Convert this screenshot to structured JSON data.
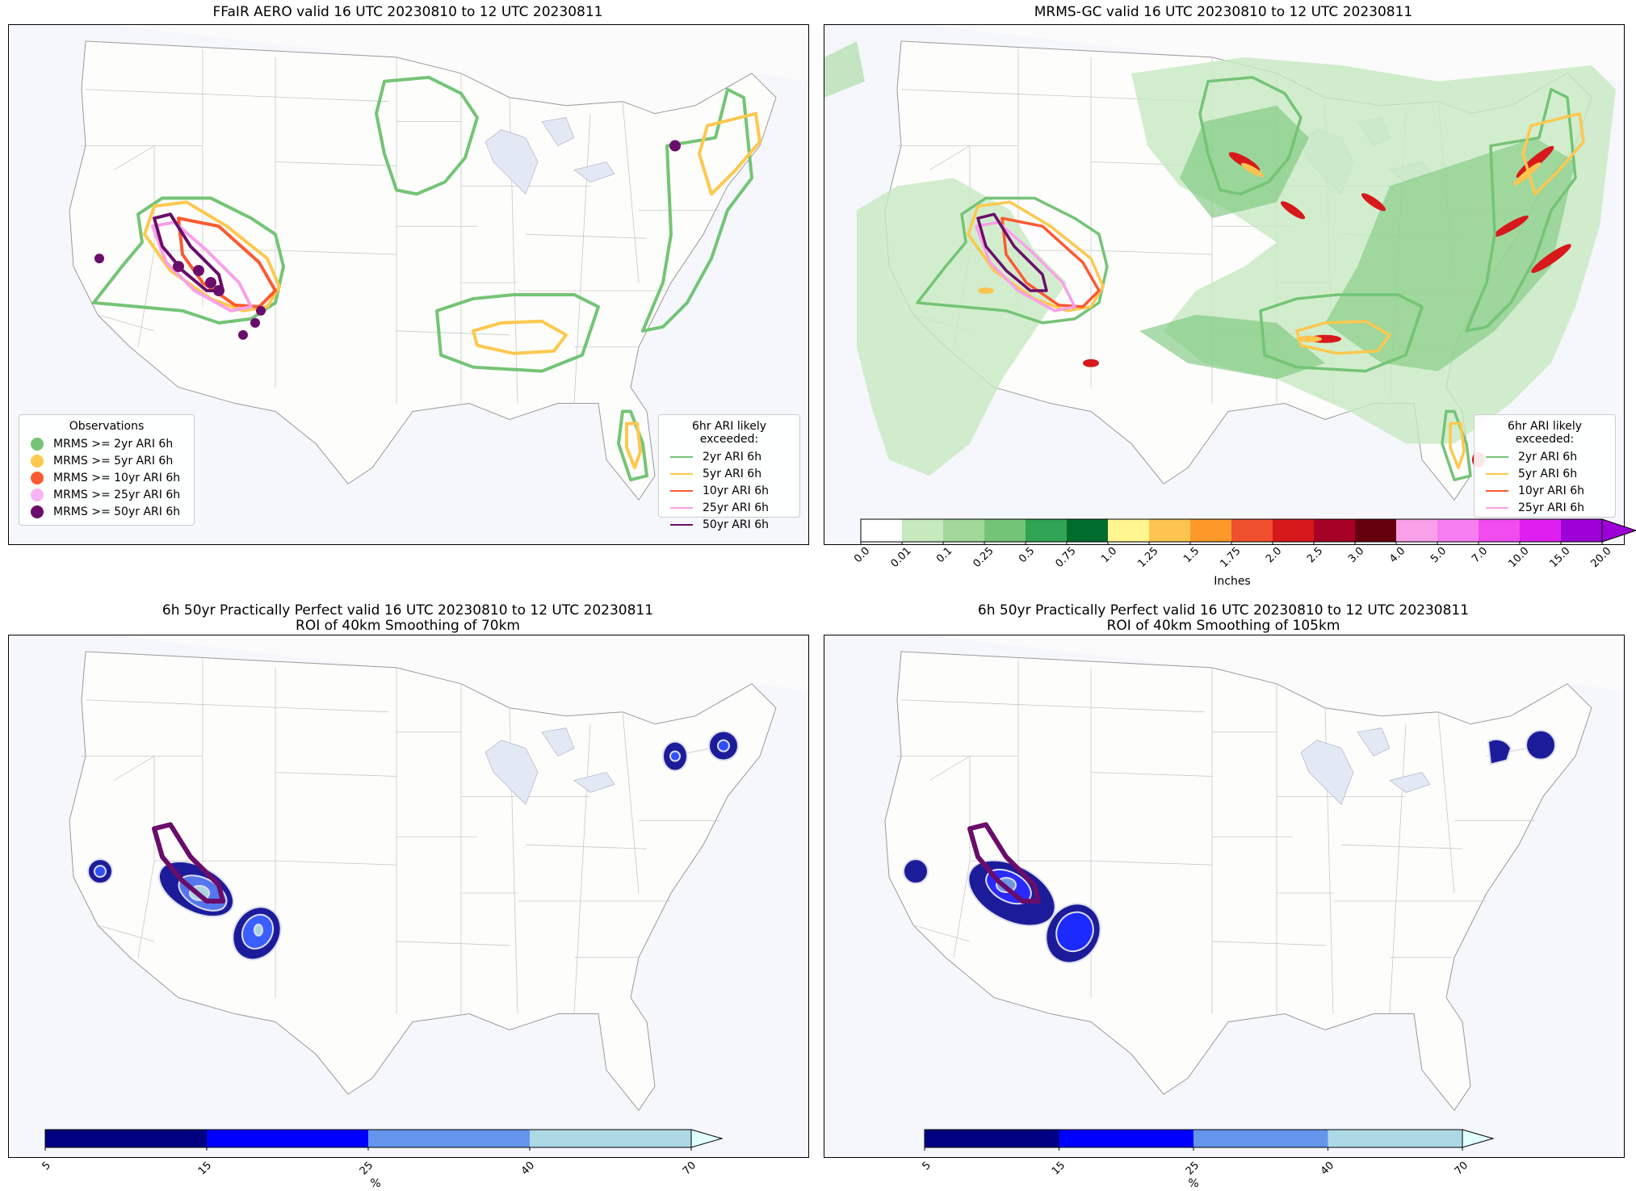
{
  "panels": [
    {
      "id": "p1",
      "title": "FFaIR AERO valid 16 UTC 20230810 to 12 UTC 20230811"
    },
    {
      "id": "p2",
      "title": "MRMS-GC valid 16 UTC 20230810 to 12 UTC 20230811"
    },
    {
      "id": "p3",
      "title": "6h 50yr Practically Perfect valid 16 UTC 20230810 to 12 UTC 20230811\nROI of 40km Smoothing of 70km"
    },
    {
      "id": "p4",
      "title": "6h 50yr Practically Perfect valid 16 UTC 20230810 to 12 UTC 20230811\nROI of 40km Smoothing of 105km"
    }
  ],
  "observations_legend": {
    "title": "Observations",
    "items": [
      {
        "label": "MRMS >= 2yr ARI 6h",
        "color": "#74c476"
      },
      {
        "label": "MRMS >= 5yr ARI 6h",
        "color": "#fdc84e"
      },
      {
        "label": "MRMS >= 10yr ARI 6h",
        "color": "#fc5a32"
      },
      {
        "label": "MRMS >= 25yr ARI 6h",
        "color": "#f9b3f2"
      },
      {
        "label": "MRMS >= 50yr ARI 6h",
        "color": "#6a0d6a"
      }
    ]
  },
  "ari_legend": {
    "title": "6hr ARI likely exceeded:",
    "items": [
      {
        "label": "2yr ARI 6h",
        "color": "#74c476"
      },
      {
        "label": "5yr ARI 6h",
        "color": "#fdc84e"
      },
      {
        "label": "10yr ARI 6h",
        "color": "#fc5a32"
      },
      {
        "label": "25yr ARI 6h",
        "color": "#f9a0e8"
      },
      {
        "label": "50yr ARI 6h",
        "color": "#6a0d6a"
      }
    ]
  },
  "precip_colorbar": {
    "label": "Inches",
    "ticks": [
      "0.0",
      "0.01",
      "0.1",
      "0.25",
      "0.5",
      "0.75",
      "1.0",
      "1.25",
      "1.5",
      "1.75",
      "2.0",
      "2.5",
      "3.0",
      "4.0",
      "5.0",
      "7.0",
      "10.0",
      "15.0",
      "20.0"
    ],
    "colors": [
      "#ffffff",
      "#c7e9c0",
      "#a1d99b",
      "#74c476",
      "#31a354",
      "#006d2c",
      "#fff68f",
      "#fec44f",
      "#fe9929",
      "#f0502d",
      "#d7191c",
      "#a50026",
      "#67000d",
      "#f9a0e8",
      "#f77ef0",
      "#f04cf0",
      "#de1ff0",
      "#9d00d6"
    ]
  },
  "prob_colorbars": [
    {
      "label": "%",
      "ticks": [
        "5",
        "15",
        "25",
        "40",
        "70"
      ],
      "colors": [
        "#000080",
        "#0000ff",
        "#6495ed",
        "#add8e6"
      ],
      "extend_color": "#e0ffff"
    },
    {
      "label": "%",
      "ticks": [
        "5",
        "15",
        "25",
        "40",
        "70"
      ],
      "colors": [
        "#000080",
        "#0000ff",
        "#6495ed",
        "#add8e6"
      ],
      "extend_color": "#e0ffff"
    }
  ]
}
